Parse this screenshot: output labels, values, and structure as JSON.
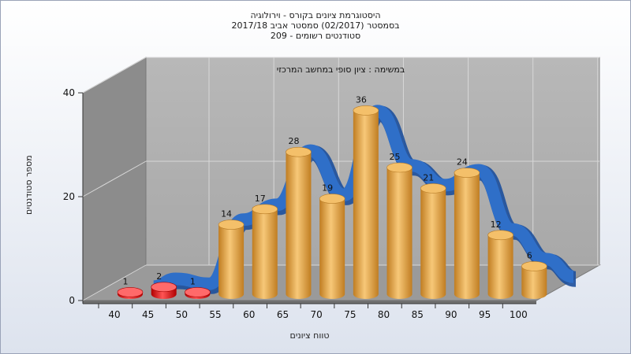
{
  "titles": [
    "היסטוגרמת ציונים בקורס - וירולוגיה",
    "בסמסטר  (02/2017)  סמסטר אביב 2017/18",
    "סטודנטים רשומים - 209"
  ],
  "chart_data": {
    "type": "bar",
    "title": "היסטוגרמת ציונים בקורס - וירולוגיה",
    "annotation": "במשימה : ציון סופי במחשב המרכזי",
    "xlabel": "טווח ציונים",
    "ylabel": "מספר סטודנטים",
    "categories": [
      "40",
      "45",
      "50",
      "55",
      "60",
      "65",
      "70",
      "75",
      "80",
      "85",
      "90",
      "95",
      "100"
    ],
    "values": [
      1,
      2,
      1,
      14,
      17,
      28,
      19,
      36,
      25,
      21,
      24,
      12,
      6
    ],
    "y_ticks": [
      0,
      20,
      40
    ],
    "ylim": [
      0,
      40
    ],
    "grid": true,
    "colors": {
      "fail": "#dd1111",
      "pass": "#e8a840",
      "curve": "#2f6fc8"
    }
  }
}
